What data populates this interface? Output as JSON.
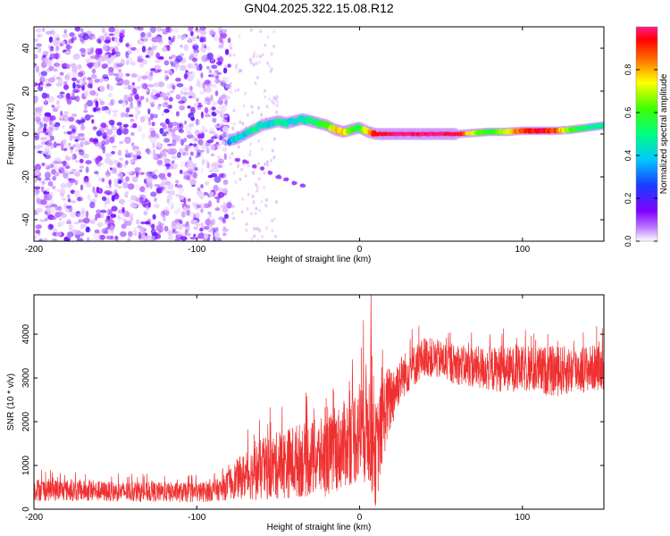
{
  "figure": {
    "title": "GN04.2025.322.15.08.R12"
  },
  "colors": {
    "background": "#ffffff",
    "axis": "#000000",
    "snr_line": "#f03030",
    "noise_dots": "#7a2cf0",
    "colormap": [
      "#ffffff",
      "#a020f0",
      "#2040ff",
      "#00ddff",
      "#00ff60",
      "#ffff00",
      "#ff6000",
      "#ff0000",
      "#ff1a8c"
    ]
  },
  "chart_data": [
    {
      "type": "heatmap",
      "title": "GN04.2025.322.15.08.R12",
      "xlabel": "Height of straight line (km)",
      "ylabel": "Frequency (Hz)",
      "xlim": [
        -200,
        150
      ],
      "ylim": [
        -50,
        50
      ],
      "x_ticks": [
        -200,
        -100,
        0,
        100
      ],
      "y_ticks": [
        -40,
        -20,
        0,
        20,
        40
      ],
      "noise_region_x": [
        -200,
        -80
      ],
      "sparse_noise_columns_x": [
        -80,
        -50
      ],
      "main_track": [
        {
          "x": -80,
          "y": -3,
          "amp": 0.35
        },
        {
          "x": -75,
          "y": -2,
          "amp": 0.45
        },
        {
          "x": -70,
          "y": 0,
          "amp": 0.4
        },
        {
          "x": -65,
          "y": 2,
          "amp": 0.5
        },
        {
          "x": -60,
          "y": 4,
          "amp": 0.45
        },
        {
          "x": -55,
          "y": 5,
          "amp": 0.4
        },
        {
          "x": -50,
          "y": 6,
          "amp": 0.5
        },
        {
          "x": -45,
          "y": 5,
          "amp": 0.45
        },
        {
          "x": -40,
          "y": 6,
          "amp": 0.4
        },
        {
          "x": -35,
          "y": 7,
          "amp": 0.45
        },
        {
          "x": -30,
          "y": 6,
          "amp": 0.5
        },
        {
          "x": -25,
          "y": 5,
          "amp": 0.55
        },
        {
          "x": -20,
          "y": 4,
          "amp": 0.6
        },
        {
          "x": -15,
          "y": 2,
          "amp": 0.75
        },
        {
          "x": -10,
          "y": 1,
          "amp": 0.8
        },
        {
          "x": -5,
          "y": 2,
          "amp": 0.6
        },
        {
          "x": 0,
          "y": 3,
          "amp": 0.55
        },
        {
          "x": 5,
          "y": 1,
          "amp": 0.8
        },
        {
          "x": 10,
          "y": 0,
          "amp": 0.95
        },
        {
          "x": 20,
          "y": 0,
          "amp": 1.0
        },
        {
          "x": 30,
          "y": 0,
          "amp": 1.0
        },
        {
          "x": 40,
          "y": 0,
          "amp": 1.0
        },
        {
          "x": 50,
          "y": 0,
          "amp": 1.0
        },
        {
          "x": 60,
          "y": 0,
          "amp": 0.95
        },
        {
          "x": 70,
          "y": 0.5,
          "amp": 0.7
        },
        {
          "x": 80,
          "y": 1,
          "amp": 0.55
        },
        {
          "x": 90,
          "y": 1,
          "amp": 0.7
        },
        {
          "x": 100,
          "y": 1.5,
          "amp": 0.9
        },
        {
          "x": 110,
          "y": 1.5,
          "amp": 0.95
        },
        {
          "x": 120,
          "y": 1.5,
          "amp": 0.9
        },
        {
          "x": 130,
          "y": 2,
          "amp": 0.6
        },
        {
          "x": 140,
          "y": 3,
          "amp": 0.5
        },
        {
          "x": 150,
          "y": 4,
          "amp": 0.45
        }
      ],
      "secondary_track": [
        {
          "x": -75,
          "y": -12
        },
        {
          "x": -70,
          "y": -13
        },
        {
          "x": -65,
          "y": -15
        },
        {
          "x": -60,
          "y": -16
        },
        {
          "x": -55,
          "y": -18
        },
        {
          "x": -50,
          "y": -20
        },
        {
          "x": -45,
          "y": -21
        },
        {
          "x": -40,
          "y": -23
        },
        {
          "x": -35,
          "y": -24
        }
      ],
      "colorbar": {
        "label": "Normalized spectral amplitude",
        "range": [
          0.0,
          1.0
        ],
        "ticks": [
          "0.0",
          "0.2",
          "0.4",
          "0.6",
          "0.8"
        ],
        "tick_values": [
          0.0,
          0.2,
          0.4,
          0.6,
          0.8
        ]
      }
    },
    {
      "type": "line",
      "xlabel": "Height of straight line (km)",
      "ylabel": "SNR (10 * v/v)",
      "xlim": [
        -200,
        150
      ],
      "ylim": [
        0,
        4900
      ],
      "x_ticks": [
        -200,
        -100,
        0,
        100
      ],
      "y_ticks": [
        0,
        1000,
        2000,
        3000,
        4000
      ],
      "series": [
        {
          "name": "SNR",
          "envelope": [
            {
              "x": -200,
              "mean": 450,
              "spread": 400
            },
            {
              "x": -150,
              "mean": 400,
              "spread": 350
            },
            {
              "x": -100,
              "mean": 380,
              "spread": 350
            },
            {
              "x": -85,
              "mean": 450,
              "spread": 400
            },
            {
              "x": -75,
              "mean": 700,
              "spread": 700
            },
            {
              "x": -60,
              "mean": 900,
              "spread": 1100
            },
            {
              "x": -40,
              "mean": 1100,
              "spread": 1300
            },
            {
              "x": -20,
              "mean": 1200,
              "spread": 1400
            },
            {
              "x": -5,
              "mean": 1600,
              "spread": 1600
            },
            {
              "x": 5,
              "mean": 2000,
              "spread": 2200
            },
            {
              "x": 10,
              "mean": 1200,
              "spread": 1800
            },
            {
              "x": 15,
              "mean": 2200,
              "spread": 1500
            },
            {
              "x": 25,
              "mean": 3000,
              "spread": 800
            },
            {
              "x": 40,
              "mean": 3500,
              "spread": 700
            },
            {
              "x": 60,
              "mean": 3300,
              "spread": 700
            },
            {
              "x": 80,
              "mean": 3200,
              "spread": 800
            },
            {
              "x": 100,
              "mean": 3200,
              "spread": 800
            },
            {
              "x": 120,
              "mean": 3150,
              "spread": 900
            },
            {
              "x": 150,
              "mean": 3250,
              "spread": 800
            }
          ],
          "peak": {
            "x": 7,
            "y": 4900
          }
        }
      ]
    }
  ]
}
